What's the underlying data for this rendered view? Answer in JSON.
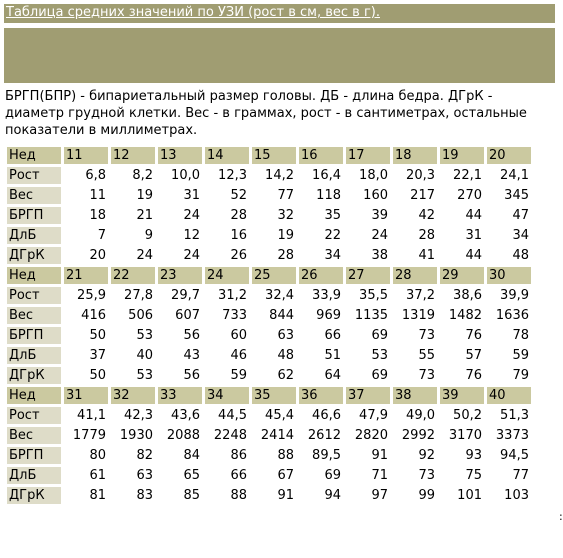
{
  "title": "Таблица средних значений по УЗИ (рост в см, вес в г).",
  "description": "БРГП(БПР) - бипариетальный размер головы. ДБ - длина бедра. ДГрК - диаметр грудной клетки. Вес - в граммах, рост - в сантиметрах, остальные показатели в миллиметрах.",
  "side_mark": ":",
  "blocks": [
    {
      "header_label": "Нед",
      "weeks": [
        "11",
        "12",
        "13",
        "14",
        "15",
        "16",
        "17",
        "18",
        "19",
        "20"
      ],
      "rows": [
        {
          "label": "Рост",
          "values": [
            "6,8",
            "8,2",
            "10,0",
            "12,3",
            "14,2",
            "16,4",
            "18,0",
            "20,3",
            "22,1",
            "24,1"
          ]
        },
        {
          "label": "Вес",
          "values": [
            "11",
            "19",
            "31",
            "52",
            "77",
            "118",
            "160",
            "217",
            "270",
            "345"
          ]
        },
        {
          "label": "БРГП",
          "values": [
            "18",
            "21",
            "24",
            "28",
            "32",
            "35",
            "39",
            "42",
            "44",
            "47"
          ]
        },
        {
          "label": "ДлБ",
          "values": [
            "7",
            "9",
            "12",
            "16",
            "19",
            "22",
            "24",
            "28",
            "31",
            "34"
          ]
        },
        {
          "label": "ДГрК",
          "values": [
            "20",
            "24",
            "24",
            "26",
            "28",
            "34",
            "38",
            "41",
            "44",
            "48"
          ]
        }
      ]
    },
    {
      "header_label": "Нед",
      "weeks": [
        "21",
        "22",
        "23",
        "24",
        "25",
        "26",
        "27",
        "28",
        "29",
        "30"
      ],
      "rows": [
        {
          "label": "Рост",
          "values": [
            "25,9",
            "27,8",
            "29,7",
            "31,2",
            "32,4",
            "33,9",
            "35,5",
            "37,2",
            "38,6",
            "39,9"
          ]
        },
        {
          "label": "Вес",
          "values": [
            "416",
            "506",
            "607",
            "733",
            "844",
            "969",
            "1135",
            "1319",
            "1482",
            "1636"
          ]
        },
        {
          "label": "БРГП",
          "values": [
            "50",
            "53",
            "56",
            "60",
            "63",
            "66",
            "69",
            "73",
            "76",
            "78"
          ]
        },
        {
          "label": "ДлБ",
          "values": [
            "37",
            "40",
            "43",
            "46",
            "48",
            "51",
            "53",
            "55",
            "57",
            "59"
          ]
        },
        {
          "label": "ДГрК",
          "values": [
            "50",
            "53",
            "56",
            "59",
            "62",
            "64",
            "69",
            "73",
            "76",
            "79"
          ]
        }
      ]
    },
    {
      "header_label": "Нед",
      "weeks": [
        "31",
        "32",
        "33",
        "34",
        "35",
        "36",
        "37",
        "38",
        "39",
        "40"
      ],
      "rows": [
        {
          "label": "Рост",
          "values": [
            "41,1",
            "42,3",
            "43,6",
            "44,5",
            "45,4",
            "46,6",
            "47,9",
            "49,0",
            "50,2",
            "51,3"
          ]
        },
        {
          "label": "Вес",
          "values": [
            "1779",
            "1930",
            "2088",
            "2248",
            "2414",
            "2612",
            "2820",
            "2992",
            "3170",
            "3373"
          ]
        },
        {
          "label": "БРГП",
          "values": [
            "80",
            "82",
            "84",
            "86",
            "88",
            "89,5",
            "91",
            "92",
            "93",
            "94,5"
          ]
        },
        {
          "label": "ДлБ",
          "values": [
            "61",
            "63",
            "65",
            "66",
            "67",
            "69",
            "71",
            "73",
            "75",
            "77"
          ]
        },
        {
          "label": "ДГрК",
          "values": [
            "81",
            "83",
            "85",
            "88",
            "91",
            "94",
            "97",
            "99",
            "101",
            "103"
          ]
        }
      ]
    }
  ]
}
